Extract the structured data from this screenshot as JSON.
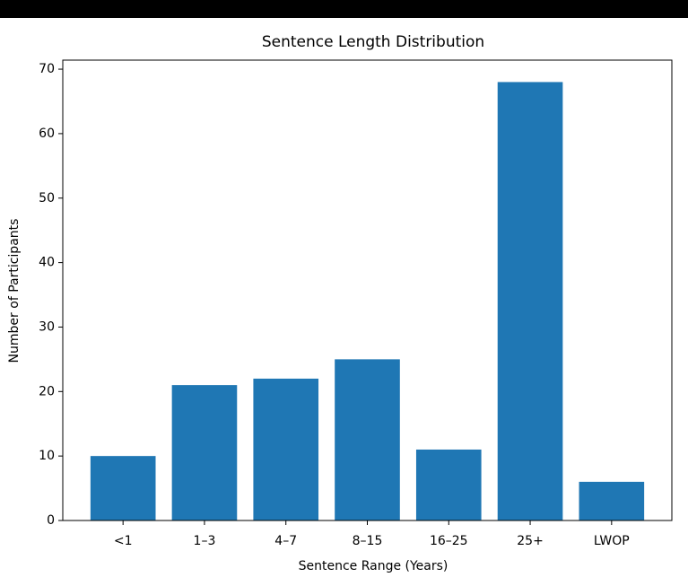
{
  "chart_data": {
    "type": "bar",
    "title": "Sentence Length Distribution",
    "x_label": "Sentence Range (Years)",
    "y_label": "Number of Participants",
    "categories": [
      "<1",
      "1–3",
      "4–7",
      "8–15",
      "16–25",
      "25+",
      "LWOP"
    ],
    "values": [
      10,
      21,
      22,
      25,
      11,
      68,
      6
    ],
    "color": "#1f77b4",
    "ylim": [
      0,
      71.4
    ],
    "yticks": [
      0,
      10,
      20,
      30,
      40,
      50,
      60,
      70
    ]
  }
}
